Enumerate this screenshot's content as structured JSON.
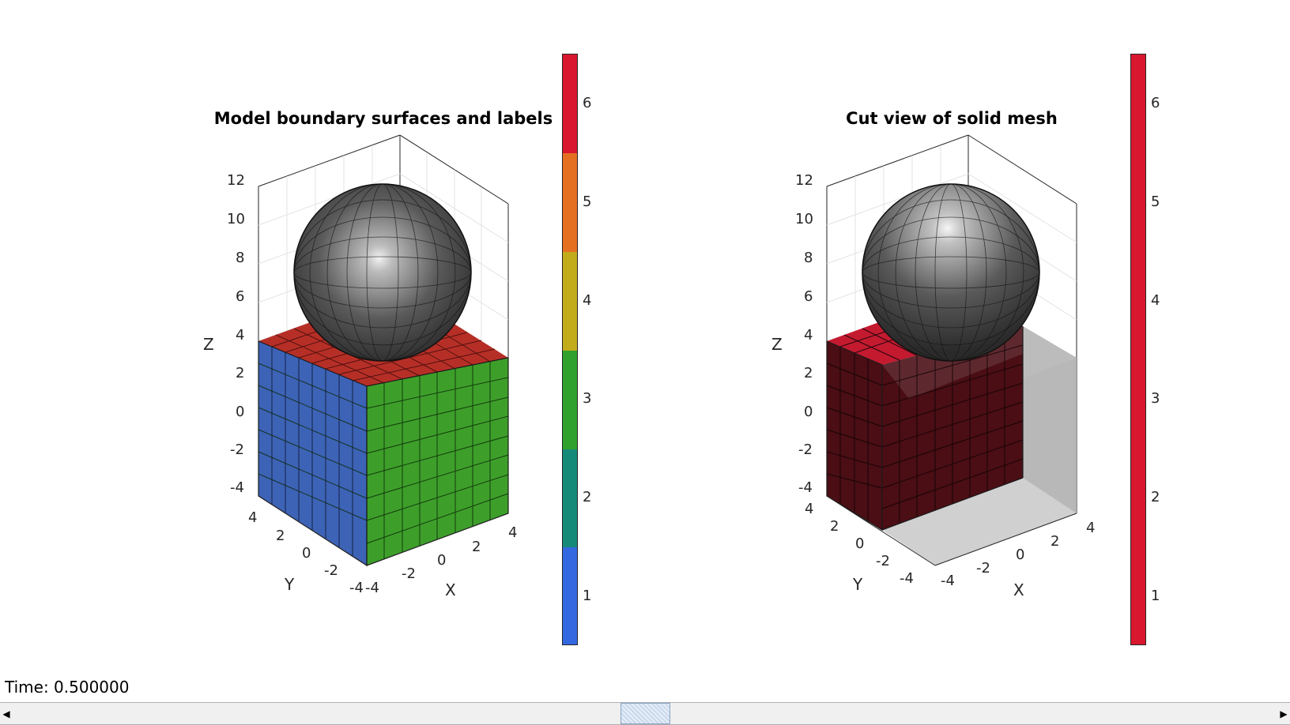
{
  "left_panel": {
    "title": "Model boundary surfaces and labels",
    "z_ticks": [
      "12",
      "10",
      "8",
      "6",
      "4",
      "2",
      "0",
      "-2",
      "-4"
    ],
    "y_ticks": [
      "4",
      "2",
      "0",
      "-2",
      "-4"
    ],
    "x_ticks": [
      "-4",
      "-2",
      "0",
      "2",
      "4"
    ],
    "xlabel": "X",
    "ylabel": "Y",
    "zlabel": "Z",
    "colorbar": {
      "labels": [
        "1",
        "2",
        "3",
        "4",
        "5",
        "6"
      ],
      "colors": [
        "#3368e0",
        "#168a79",
        "#2fa12c",
        "#c2ac1c",
        "#e57022",
        "#d9172f"
      ]
    },
    "face_colors": {
      "left": "#3d63b6",
      "right": "#3d9f2a",
      "top": "#b62f27",
      "sphere": "#7a7a7a"
    }
  },
  "right_panel": {
    "title": "Cut view of solid mesh",
    "z_ticks": [
      "12",
      "10",
      "8",
      "6",
      "4",
      "2",
      "0",
      "-2",
      "-4"
    ],
    "y_ticks": [
      "4",
      "2",
      "0",
      "-2",
      "-4"
    ],
    "x_ticks": [
      "-4",
      "-2",
      "0",
      "2",
      "4"
    ],
    "xlabel": "X",
    "ylabel": "Y",
    "zlabel": "Z",
    "colorbar": {
      "labels": [
        "1",
        "2",
        "3",
        "4",
        "5",
        "6"
      ],
      "colors": [
        "#d9172f"
      ]
    },
    "face_colors": {
      "solid": "#4a0e14",
      "top": "#c41a30",
      "ghost": "#b0b0b0"
    }
  },
  "status": {
    "label": "Time: 0.500000"
  },
  "scrollbar": {
    "left_arrow": "◀",
    "right_arrow": "▶",
    "value_fraction": 0.5
  }
}
